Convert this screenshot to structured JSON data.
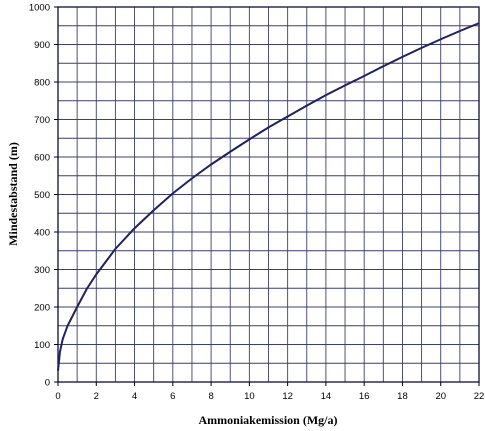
{
  "chart_data": {
    "type": "line",
    "title": "",
    "xlabel": "Ammoniakemission (Mg/a)",
    "ylabel": "Mindestabstand (m)",
    "xlim": [
      0,
      22
    ],
    "ylim": [
      0,
      1000
    ],
    "x_ticks": [
      "0",
      "2",
      "4",
      "6",
      "8",
      "10",
      "12",
      "14",
      "16",
      "18",
      "20",
      "22"
    ],
    "y_ticks": [
      "0",
      "100",
      "200",
      "300",
      "400",
      "500",
      "600",
      "700",
      "800",
      "900",
      "1000"
    ],
    "x_grid_step": 1,
    "y_grid_step": 50,
    "grid": true,
    "line_color": "#1f2160",
    "series": [
      {
        "x": [
          0,
          0.1,
          0.25,
          0.5,
          1,
          1.5,
          2,
          3,
          4,
          5,
          6,
          7,
          8,
          9,
          10,
          11,
          12,
          13,
          14,
          15,
          16,
          17,
          18,
          19,
          20,
          21,
          22
        ],
        "values": [
          30,
          80,
          115,
          150,
          200,
          248,
          287,
          355,
          410,
          458,
          503,
          543,
          580,
          614,
          647,
          679,
          708,
          737,
          765,
          791,
          816,
          842,
          867,
          891,
          914,
          936,
          957
        ]
      }
    ]
  }
}
